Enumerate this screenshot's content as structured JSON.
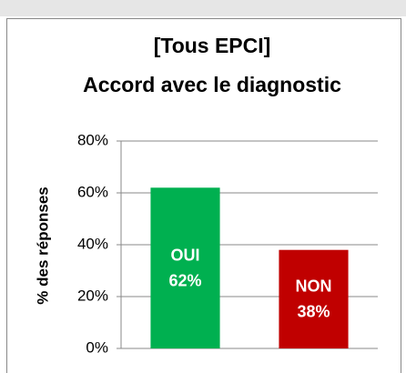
{
  "chart_data": {
    "type": "bar",
    "title": [
      "[Tous EPCI]",
      "Accord avec le diagnostic"
    ],
    "y_label": "% des réponses",
    "categories": [
      "OUI",
      "NON"
    ],
    "values": [
      62,
      38
    ],
    "value_labels": [
      "62%",
      "38%"
    ],
    "colors": [
      "#00b050",
      "#c00000"
    ],
    "ylim": [
      0,
      80
    ],
    "yticks": [
      {
        "value": 0,
        "label": "0%"
      },
      {
        "value": 20,
        "label": "20%"
      },
      {
        "value": 40,
        "label": "40%"
      },
      {
        "value": 60,
        "label": "60%"
      },
      {
        "value": 80,
        "label": "80%"
      }
    ],
    "grid": true
  }
}
